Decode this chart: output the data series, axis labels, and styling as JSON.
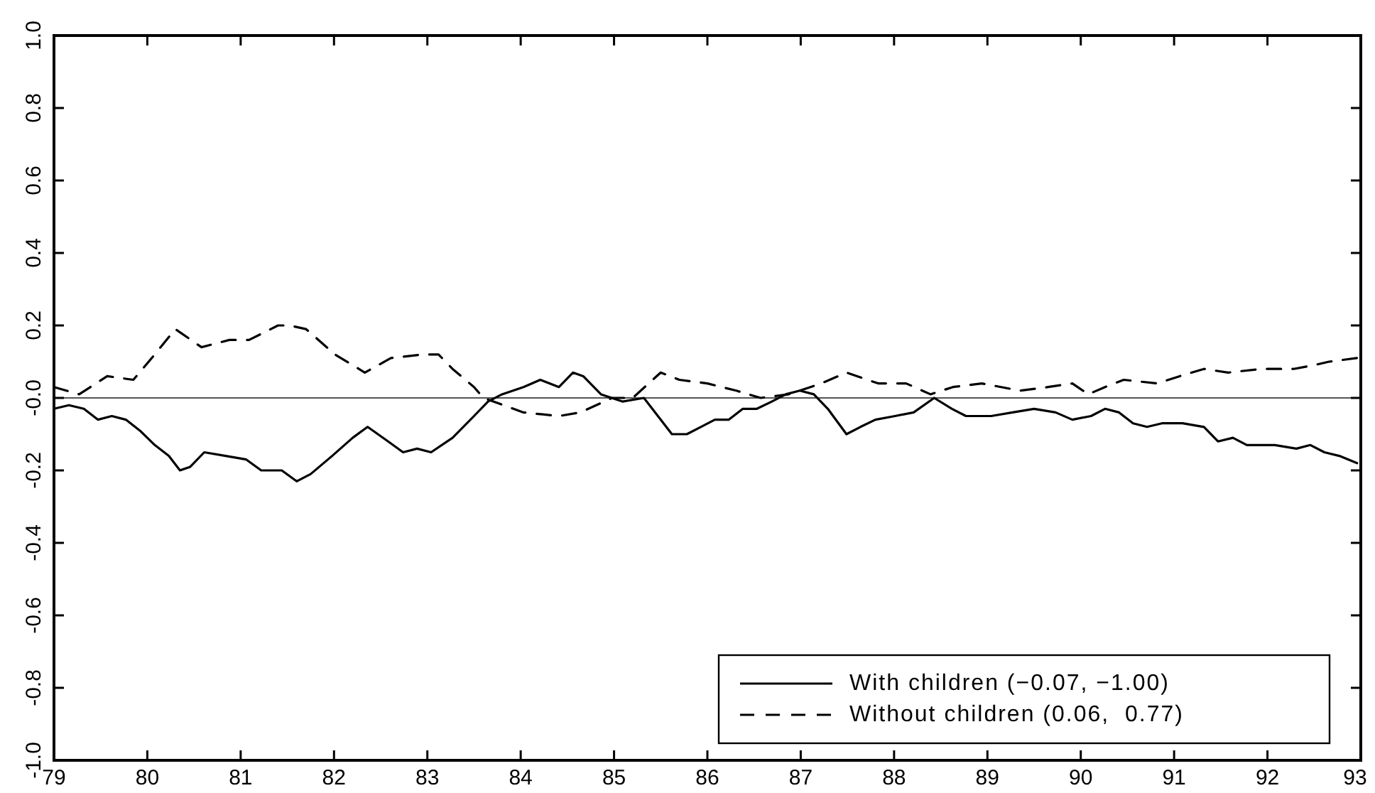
{
  "chart_data": {
    "type": "line",
    "xlim": [
      79,
      93
    ],
    "xticks": [
      79,
      80,
      81,
      82,
      83,
      84,
      85,
      86,
      87,
      88,
      89,
      90,
      91,
      92,
      93
    ],
    "ylim": [
      -1,
      1
    ],
    "yticks": [
      {
        "value": -1,
        "label": "-1.0"
      },
      {
        "value": -0.8,
        "label": "-0.8"
      },
      {
        "value": -0.6,
        "label": "-0.6"
      },
      {
        "value": -0.4,
        "label": "-0.4"
      },
      {
        "value": -0.2,
        "label": "-0.2"
      },
      {
        "value": 0,
        "label": "-0.0"
      },
      {
        "value": 0.2,
        "label": "0.2"
      },
      {
        "value": 0.4,
        "label": "0.4"
      },
      {
        "value": 0.6,
        "label": "0.6"
      },
      {
        "value": 0.8,
        "label": "0.8"
      },
      {
        "value": 1,
        "label": "1.0"
      }
    ],
    "grid": false,
    "legend": "bottom right",
    "ref_lines": [
      {
        "axis": "y",
        "value": 0,
        "color": "#555555"
      }
    ],
    "series": [
      {
        "name": "With children (−0.07, −1.00)",
        "color": "#000000",
        "line_style": "solid",
        "x": [
          79.0,
          79.16,
          79.32,
          79.47,
          79.62,
          79.77,
          79.92,
          80.08,
          80.23,
          80.35,
          80.46,
          80.61,
          80.84,
          81.06,
          81.22,
          81.44,
          81.6,
          81.75,
          81.98,
          82.2,
          82.36,
          82.58,
          82.74,
          82.89,
          83.04,
          83.27,
          83.5,
          83.65,
          83.8,
          84.03,
          84.21,
          84.41,
          84.56,
          84.67,
          84.86,
          85.09,
          85.32,
          85.47,
          85.62,
          85.78,
          85.93,
          86.08,
          86.23,
          86.38,
          86.53,
          86.69,
          86.84,
          86.99,
          87.14,
          87.29,
          87.49,
          87.64,
          87.8,
          88.01,
          88.21,
          88.43,
          88.62,
          88.77,
          89.04,
          89.27,
          89.5,
          89.73,
          89.91,
          90.11,
          90.26,
          90.41,
          90.56,
          90.71,
          90.87,
          91.09,
          91.32,
          91.47,
          91.63,
          91.78,
          92.08,
          92.31,
          92.46,
          92.61,
          92.77,
          92.96
        ],
        "values": [
          -0.03,
          -0.02,
          -0.03,
          -0.06,
          -0.05,
          -0.06,
          -0.09,
          -0.13,
          -0.16,
          -0.2,
          -0.19,
          -0.15,
          -0.16,
          -0.17,
          -0.2,
          -0.2,
          -0.23,
          -0.21,
          -0.16,
          -0.11,
          -0.08,
          -0.12,
          -0.15,
          -0.14,
          -0.15,
          -0.11,
          -0.05,
          -0.01,
          0.01,
          0.03,
          0.05,
          0.03,
          0.07,
          0.06,
          0.01,
          -0.01,
          0.0,
          -0.05,
          -0.1,
          -0.1,
          -0.08,
          -0.06,
          -0.06,
          -0.03,
          -0.03,
          -0.01,
          0.01,
          0.02,
          0.01,
          -0.03,
          -0.1,
          -0.08,
          -0.06,
          -0.05,
          -0.04,
          0.0,
          -0.03,
          -0.05,
          -0.05,
          -0.04,
          -0.03,
          -0.04,
          -0.06,
          -0.05,
          -0.03,
          -0.04,
          -0.07,
          -0.08,
          -0.07,
          -0.07,
          -0.08,
          -0.12,
          -0.11,
          -0.13,
          -0.13,
          -0.14,
          -0.13,
          -0.15,
          -0.16,
          -0.18
        ]
      },
      {
        "name": "Without children (0.06,  0.77)",
        "color": "#000000",
        "line_style": "dashed",
        "x": [
          79.0,
          79.27,
          79.57,
          79.85,
          80.08,
          80.3,
          80.58,
          80.88,
          81.09,
          81.4,
          81.52,
          81.7,
          82.01,
          82.33,
          82.61,
          82.96,
          83.12,
          83.27,
          83.5,
          83.6,
          84.03,
          84.41,
          84.64,
          84.98,
          85.2,
          85.5,
          85.7,
          86.0,
          86.31,
          86.57,
          86.87,
          87.22,
          87.49,
          87.83,
          88.13,
          88.39,
          88.63,
          88.94,
          89.35,
          89.65,
          89.91,
          90.08,
          90.26,
          90.46,
          90.82,
          91.06,
          91.32,
          91.58,
          91.93,
          92.28,
          92.49,
          92.66,
          92.96
        ],
        "values": [
          0.03,
          0.01,
          0.06,
          0.05,
          0.12,
          0.19,
          0.14,
          0.16,
          0.16,
          0.2,
          0.2,
          0.19,
          0.12,
          0.07,
          0.11,
          0.12,
          0.12,
          0.08,
          0.03,
          0.0,
          -0.04,
          -0.05,
          -0.04,
          0.0,
          0.0,
          0.07,
          0.05,
          0.04,
          0.02,
          0.0,
          0.01,
          0.04,
          0.07,
          0.04,
          0.04,
          0.01,
          0.03,
          0.04,
          0.02,
          0.03,
          0.04,
          0.01,
          0.03,
          0.05,
          0.04,
          0.06,
          0.08,
          0.07,
          0.08,
          0.08,
          0.09,
          0.1,
          0.11
        ]
      }
    ]
  }
}
